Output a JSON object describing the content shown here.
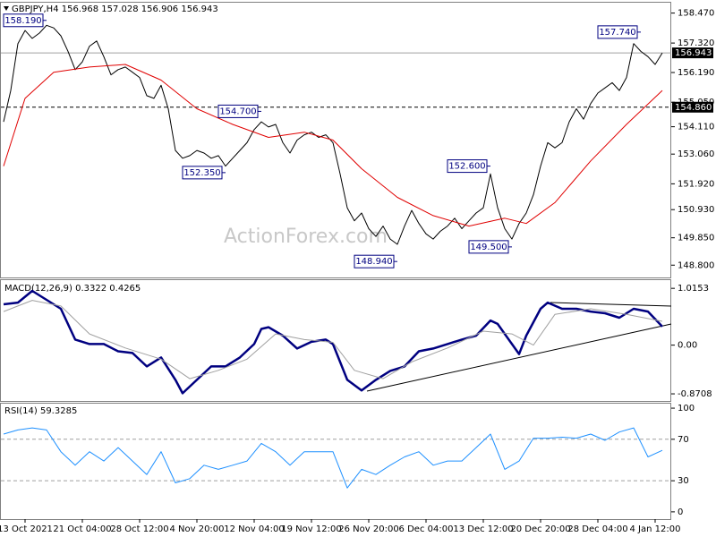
{
  "chart_data": [
    {
      "type": "line",
      "title": "GBPJPY,H4 156.968 157.028 156.906 156.943",
      "watermark": "ActionForex.com",
      "categories": [
        null,
        null,
        null,
        "13 Oct 2021",
        null,
        null,
        null,
        null,
        null,
        null,
        null,
        "21 Oct 04:00",
        null,
        null,
        null,
        null,
        null,
        null,
        null,
        "28 Oct 12:00",
        null,
        null,
        null,
        null,
        null,
        null,
        null,
        "4 Nov 20:00",
        null,
        null,
        null,
        null,
        null,
        null,
        null,
        "12 Nov 04:00",
        null,
        null,
        null,
        null,
        null,
        null,
        null,
        "19 Nov 12:00",
        null,
        null,
        null,
        null,
        null,
        null,
        null,
        "26 Nov 20:00",
        null,
        null,
        null,
        null,
        null,
        null,
        null,
        "6 Dec 04:00",
        null,
        null,
        null,
        null,
        null,
        null,
        null,
        "13 Dec 12:00",
        null,
        null,
        null,
        null,
        null,
        null,
        null,
        "20 Dec 20:00",
        null,
        null,
        null,
        null,
        null,
        null,
        null,
        "28 Dec 04:00",
        null,
        null,
        null,
        null,
        null,
        null,
        null,
        "4 Jan 12:00",
        null
      ],
      "series": [
        {
          "color": "#000000",
          "values": [
            154.3,
            155.5,
            157.3,
            157.8,
            157.5,
            157.7,
            158.0,
            157.9,
            157.6,
            157.0,
            156.3,
            156.6,
            157.2,
            157.4,
            156.8,
            156.1,
            156.3,
            156.4,
            156.2,
            156.0,
            155.3,
            155.2,
            155.7,
            154.8,
            153.2,
            152.9,
            153.0,
            153.2,
            153.1,
            152.9,
            153.0,
            152.6,
            152.9,
            153.2,
            153.5,
            154.0,
            154.3,
            154.1,
            154.2,
            153.5,
            153.1,
            153.6,
            153.8,
            153.9,
            153.7,
            153.8,
            153.5,
            152.3,
            151.0,
            150.5,
            150.8,
            150.2,
            149.9,
            150.3,
            149.8,
            149.6,
            150.3,
            150.9,
            150.4,
            150.0,
            149.8,
            150.1,
            150.3,
            150.6,
            150.2,
            150.5,
            150.8,
            151.0,
            152.3,
            151.0,
            150.2,
            149.8,
            150.4,
            150.8,
            151.5,
            152.6,
            153.5,
            153.3,
            153.5,
            154.3,
            154.8,
            154.4,
            155.0,
            155.4,
            155.6,
            155.8,
            155.5,
            156.0,
            157.3,
            157.0,
            156.8,
            156.5,
            156.943
          ]
        },
        {
          "color": "#e00000",
          "x": [
            0,
            3,
            7,
            12,
            17,
            22,
            27,
            32,
            37,
            42,
            46,
            50,
            55,
            60,
            65,
            70,
            73,
            77,
            82,
            87,
            92
          ],
          "values": [
            152.6,
            155.2,
            156.2,
            156.4,
            156.5,
            155.9,
            154.8,
            154.2,
            153.7,
            153.9,
            153.6,
            152.5,
            151.4,
            150.7,
            150.3,
            150.6,
            150.4,
            151.2,
            152.8,
            154.2,
            155.5
          ]
        }
      ],
      "ylim": [
        148.5,
        158.8
      ],
      "yticks": [
        {
          "value": 158.47,
          "label": "158.470"
        },
        {
          "value": 157.32,
          "label": "157.320"
        },
        {
          "value": 156.19,
          "label": "156.190"
        },
        {
          "value": 155.05,
          "label": "155.050"
        },
        {
          "value": 154.11,
          "label": "154.110"
        },
        {
          "value": 153.06,
          "label": "153.060"
        },
        {
          "value": 151.92,
          "label": "151.920"
        },
        {
          "value": 150.93,
          "label": "150.930"
        },
        {
          "value": 149.85,
          "label": "149.850"
        },
        {
          "value": 148.8,
          "label": "148.800"
        }
      ],
      "hlines": [
        {
          "value": 156.943,
          "label": "156.943",
          "style": "solid",
          "color": "#a0a0a0"
        },
        {
          "value": 154.86,
          "label": "154.860",
          "style": "dashed",
          "color": "#000000"
        }
      ],
      "annotations": [
        {
          "x": 6,
          "value": 158.19,
          "label": "158.190"
        },
        {
          "x": 36,
          "value": 154.7,
          "label": "154.700"
        },
        {
          "x": 31,
          "value": 152.35,
          "label": "152.350"
        },
        {
          "x": 68,
          "value": 152.6,
          "label": "152.600"
        },
        {
          "x": 55,
          "value": 148.94,
          "label": "148.940"
        },
        {
          "x": 71,
          "value": 149.5,
          "label": "149.500"
        },
        {
          "x": 89,
          "value": 157.74,
          "label": "157.740"
        }
      ]
    },
    {
      "type": "line",
      "title": "MACD(12,26,9) 0.3322 0.4265",
      "series": [
        {
          "color": "#000080",
          "width": 2.5,
          "x": [
            0,
            2,
            4,
            6,
            8,
            10,
            12,
            14,
            16,
            18,
            20,
            22,
            24,
            25,
            27,
            29,
            31,
            33,
            35,
            36,
            37,
            39,
            41,
            43,
            45,
            46,
            48,
            50,
            52,
            54,
            56,
            58,
            60,
            62,
            64,
            66,
            68,
            69,
            71,
            72,
            73,
            75,
            76,
            78,
            80,
            82,
            84,
            86,
            88,
            90,
            92
          ],
          "values": [
            0.73,
            0.76,
            0.97,
            0.81,
            0.65,
            0.1,
            0.02,
            0.02,
            -0.11,
            -0.14,
            -0.38,
            -0.22,
            -0.62,
            -0.86,
            -0.62,
            -0.38,
            -0.38,
            -0.22,
            0.02,
            0.29,
            0.32,
            0.17,
            -0.06,
            0.06,
            0.1,
            0.02,
            -0.62,
            -0.81,
            -0.62,
            -0.46,
            -0.38,
            -0.11,
            -0.06,
            0.02,
            0.1,
            0.17,
            0.44,
            0.38,
            0.02,
            -0.16,
            0.17,
            0.65,
            0.76,
            0.65,
            0.65,
            0.6,
            0.57,
            0.49,
            0.65,
            0.6,
            0.3322
          ]
        },
        {
          "color": "#a0a0a0",
          "width": 1,
          "x": [
            0,
            4,
            8,
            12,
            17,
            22,
            26,
            30,
            34,
            38,
            42,
            46,
            49,
            53,
            57,
            62,
            67,
            71,
            74,
            77,
            82,
            87,
            92
          ],
          "values": [
            0.6,
            0.8,
            0.7,
            0.2,
            -0.05,
            -0.25,
            -0.6,
            -0.45,
            -0.25,
            0.2,
            0.1,
            0.05,
            -0.45,
            -0.6,
            -0.3,
            -0.05,
            0.25,
            0.2,
            0.0,
            0.55,
            0.65,
            0.55,
            0.4265
          ]
        }
      ],
      "ylim": [
        -0.95,
        1.13
      ],
      "yticks": [
        1.0153,
        {
          "value": 0,
          "label": "0.00"
        },
        -0.8708
      ]
    },
    {
      "type": "line",
      "title": "RSI(14) 59.3285",
      "series": [
        {
          "color": "#1e90ff",
          "width": 1,
          "x": [
            0,
            2,
            4,
            6,
            8,
            10,
            12,
            14,
            16,
            18,
            20,
            22,
            24,
            26,
            28,
            30,
            32,
            34,
            36,
            38,
            40,
            42,
            44,
            46,
            48,
            50,
            52,
            54,
            56,
            58,
            60,
            62,
            64,
            66,
            68,
            70,
            72,
            74,
            76,
            78,
            80,
            82,
            84,
            86,
            88,
            90,
            92
          ],
          "values": [
            75,
            79,
            81,
            79,
            58,
            45,
            58,
            49,
            62,
            49,
            36,
            58,
            28,
            32,
            45,
            41,
            45,
            49,
            66,
            58,
            45,
            58,
            58,
            58,
            23,
            41,
            36,
            45,
            53,
            58,
            45,
            49,
            49,
            62,
            75,
            41,
            49,
            71,
            71,
            72,
            71,
            75,
            69,
            77,
            81,
            53,
            59.3285
          ]
        }
      ],
      "ylim": [
        -7,
        103.5
      ],
      "yticks": [
        100,
        70,
        30,
        0
      ],
      "hlines": [
        {
          "value": 70,
          "style": "dashed",
          "color": "#a0a0a0"
        },
        {
          "value": 30,
          "style": "dashed",
          "color": "#a0a0a0"
        }
      ]
    }
  ]
}
